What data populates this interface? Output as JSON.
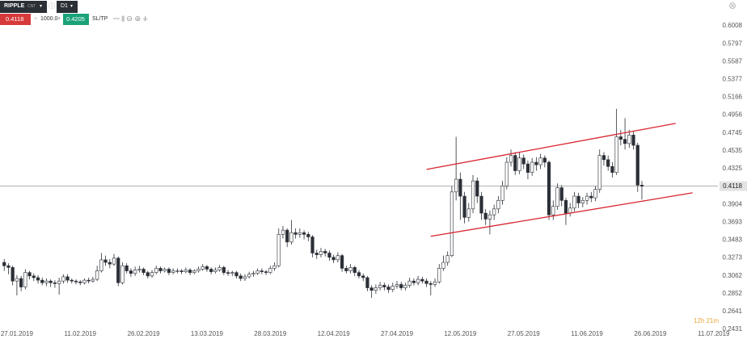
{
  "toolbar": {
    "symbol": "RIPPLE",
    "mode": "CNT",
    "timeframe": "D1",
    "sell": "0.4118",
    "volume": "1000.0",
    "buy": "0.4205",
    "sltp": "SL/TP"
  },
  "chart_data": {
    "type": "candlestick",
    "x": [
      "24.01.2019",
      "25.01.2019",
      "26.01.2019",
      "27.01.2019",
      "28.01.2019",
      "29.01.2019",
      "30.01.2019",
      "31.01.2019",
      "01.02.2019",
      "02.02.2019",
      "03.02.2019",
      "04.02.2019",
      "05.02.2019",
      "06.02.2019",
      "07.02.2019",
      "08.02.2019",
      "09.02.2019",
      "10.02.2019",
      "11.02.2019",
      "12.02.2019",
      "13.02.2019",
      "14.02.2019",
      "15.02.2019",
      "16.02.2019",
      "17.02.2019",
      "18.02.2019",
      "19.02.2019",
      "20.02.2019",
      "21.02.2019",
      "22.02.2019",
      "23.02.2019",
      "24.02.2019",
      "25.02.2019",
      "26.02.2019",
      "27.02.2019",
      "28.02.2019",
      "01.03.2019",
      "02.03.2019",
      "03.03.2019",
      "04.03.2019",
      "05.03.2019",
      "06.03.2019",
      "07.03.2019",
      "08.03.2019",
      "09.03.2019",
      "10.03.2019",
      "11.03.2019",
      "12.03.2019",
      "13.03.2019",
      "14.03.2019",
      "15.03.2019",
      "16.03.2019",
      "17.03.2019",
      "18.03.2019",
      "19.03.2019",
      "20.03.2019",
      "21.03.2019",
      "22.03.2019",
      "23.03.2019",
      "24.03.2019",
      "25.03.2019",
      "26.03.2019",
      "27.03.2019",
      "28.03.2019",
      "29.03.2019",
      "30.03.2019",
      "31.03.2019",
      "01.04.2019",
      "02.04.2019",
      "03.04.2019",
      "04.04.2019",
      "05.04.2019",
      "06.04.2019",
      "07.04.2019",
      "08.04.2019",
      "09.04.2019",
      "10.04.2019",
      "11.04.2019",
      "12.04.2019",
      "13.04.2019",
      "14.04.2019",
      "15.04.2019",
      "16.04.2019",
      "17.04.2019",
      "18.04.2019",
      "19.04.2019",
      "20.04.2019",
      "21.04.2019",
      "22.04.2019",
      "23.04.2019",
      "24.04.2019",
      "25.04.2019",
      "26.04.2019",
      "27.04.2019",
      "28.04.2019",
      "29.04.2019",
      "30.04.2019",
      "01.05.2019",
      "02.05.2019",
      "03.05.2019",
      "04.05.2019",
      "05.05.2019",
      "06.05.2019",
      "07.05.2019",
      "08.05.2019",
      "09.05.2019",
      "10.05.2019",
      "11.05.2019",
      "12.05.2019",
      "13.05.2019",
      "14.05.2019",
      "15.05.2019",
      "16.05.2019",
      "17.05.2019",
      "18.05.2019",
      "19.05.2019",
      "20.05.2019",
      "21.05.2019",
      "22.05.2019",
      "23.05.2019",
      "24.05.2019",
      "25.05.2019",
      "26.05.2019",
      "27.05.2019",
      "28.05.2019",
      "29.05.2019",
      "30.05.2019",
      "31.05.2019",
      "01.06.2019",
      "02.06.2019",
      "03.06.2019",
      "04.06.2019",
      "05.06.2019",
      "06.06.2019",
      "07.06.2019",
      "08.06.2019",
      "09.06.2019",
      "10.06.2019",
      "11.06.2019",
      "12.06.2019",
      "13.06.2019",
      "14.06.2019",
      "15.06.2019",
      "16.06.2019",
      "17.06.2019",
      "18.06.2019",
      "19.06.2019",
      "20.06.2019",
      "21.06.2019",
      "22.06.2019",
      "23.06.2019",
      "24.06.2019"
    ],
    "open": [
      0.322,
      0.318,
      0.316,
      0.3,
      0.303,
      0.293,
      0.31,
      0.306,
      0.304,
      0.301,
      0.298,
      0.3,
      0.298,
      0.297,
      0.3,
      0.305,
      0.301,
      0.3,
      0.299,
      0.298,
      0.301,
      0.3,
      0.302,
      0.312,
      0.325,
      0.322,
      0.32,
      0.327,
      0.298,
      0.318,
      0.312,
      0.309,
      0.313,
      0.314,
      0.31,
      0.306,
      0.31,
      0.315,
      0.312,
      0.314,
      0.31,
      0.312,
      0.312,
      0.311,
      0.313,
      0.31,
      0.312,
      0.314,
      0.317,
      0.314,
      0.311,
      0.313,
      0.316,
      0.31,
      0.309,
      0.31,
      0.306,
      0.303,
      0.305,
      0.308,
      0.309,
      0.312,
      0.311,
      0.31,
      0.315,
      0.318,
      0.355,
      0.36,
      0.346,
      0.357,
      0.355,
      0.357,
      0.355,
      0.352,
      0.333,
      0.331,
      0.335,
      0.333,
      0.328,
      0.325,
      0.33,
      0.315,
      0.312,
      0.316,
      0.31,
      0.306,
      0.304,
      0.292,
      0.289,
      0.292,
      0.295,
      0.293,
      0.29,
      0.294,
      0.296,
      0.292,
      0.295,
      0.3,
      0.298,
      0.302,
      0.3,
      0.297,
      0.296,
      0.299,
      0.315,
      0.322,
      0.33,
      0.405,
      0.42,
      0.4,
      0.375,
      0.385,
      0.418,
      0.4,
      0.38,
      0.373,
      0.378,
      0.385,
      0.395,
      0.412,
      0.44,
      0.448,
      0.43,
      0.445,
      0.438,
      0.428,
      0.44,
      0.437,
      0.445,
      0.44,
      0.378,
      0.388,
      0.41,
      0.395,
      0.38,
      0.386,
      0.4,
      0.392,
      0.395,
      0.4,
      0.398,
      0.408,
      0.448,
      0.443,
      0.435,
      0.428,
      0.47,
      0.467,
      0.462,
      0.472,
      0.46,
      0.413
    ],
    "high": [
      0.326,
      0.321,
      0.318,
      0.307,
      0.306,
      0.314,
      0.312,
      0.309,
      0.307,
      0.304,
      0.303,
      0.302,
      0.301,
      0.304,
      0.308,
      0.308,
      0.303,
      0.302,
      0.301,
      0.303,
      0.304,
      0.305,
      0.318,
      0.333,
      0.33,
      0.326,
      0.332,
      0.329,
      0.322,
      0.321,
      0.315,
      0.317,
      0.318,
      0.316,
      0.312,
      0.313,
      0.318,
      0.317,
      0.316,
      0.316,
      0.315,
      0.315,
      0.314,
      0.316,
      0.315,
      0.314,
      0.317,
      0.32,
      0.319,
      0.316,
      0.316,
      0.319,
      0.318,
      0.313,
      0.312,
      0.312,
      0.309,
      0.308,
      0.311,
      0.312,
      0.315,
      0.315,
      0.313,
      0.318,
      0.322,
      0.362,
      0.365,
      0.362,
      0.372,
      0.362,
      0.362,
      0.36,
      0.358,
      0.354,
      0.337,
      0.339,
      0.338,
      0.336,
      0.331,
      0.334,
      0.332,
      0.318,
      0.32,
      0.318,
      0.313,
      0.309,
      0.306,
      0.295,
      0.296,
      0.299,
      0.298,
      0.296,
      0.298,
      0.3,
      0.299,
      0.298,
      0.304,
      0.303,
      0.306,
      0.305,
      0.303,
      0.3,
      0.303,
      0.32,
      0.33,
      0.335,
      0.412,
      0.47,
      0.428,
      0.405,
      0.392,
      0.425,
      0.422,
      0.405,
      0.385,
      0.383,
      0.39,
      0.4,
      0.418,
      0.446,
      0.455,
      0.452,
      0.452,
      0.449,
      0.442,
      0.445,
      0.446,
      0.45,
      0.448,
      0.442,
      0.395,
      0.415,
      0.413,
      0.398,
      0.392,
      0.405,
      0.404,
      0.399,
      0.404,
      0.405,
      0.412,
      0.455,
      0.452,
      0.448,
      0.44,
      0.503,
      0.478,
      0.492,
      0.478,
      0.476,
      0.463,
      0.418
    ],
    "low": [
      0.312,
      0.308,
      0.295,
      0.283,
      0.288,
      0.29,
      0.302,
      0.3,
      0.297,
      0.295,
      0.294,
      0.293,
      0.292,
      0.284,
      0.297,
      0.298,
      0.297,
      0.296,
      0.295,
      0.296,
      0.297,
      0.298,
      0.3,
      0.31,
      0.318,
      0.315,
      0.318,
      0.294,
      0.296,
      0.309,
      0.305,
      0.306,
      0.31,
      0.307,
      0.303,
      0.304,
      0.308,
      0.309,
      0.31,
      0.307,
      0.308,
      0.309,
      0.308,
      0.309,
      0.307,
      0.308,
      0.31,
      0.312,
      0.311,
      0.308,
      0.309,
      0.311,
      0.307,
      0.306,
      0.306,
      0.303,
      0.3,
      0.3,
      0.303,
      0.305,
      0.307,
      0.308,
      0.307,
      0.308,
      0.312,
      0.316,
      0.35,
      0.34,
      0.343,
      0.35,
      0.351,
      0.349,
      0.347,
      0.328,
      0.326,
      0.328,
      0.329,
      0.324,
      0.321,
      0.322,
      0.311,
      0.309,
      0.309,
      0.306,
      0.303,
      0.3,
      0.288,
      0.28,
      0.285,
      0.289,
      0.289,
      0.286,
      0.287,
      0.291,
      0.289,
      0.289,
      0.292,
      0.295,
      0.295,
      0.297,
      0.293,
      0.283,
      0.293,
      0.297,
      0.312,
      0.318,
      0.328,
      0.395,
      0.372,
      0.368,
      0.37,
      0.38,
      0.392,
      0.372,
      0.366,
      0.355,
      0.372,
      0.38,
      0.39,
      0.408,
      0.435,
      0.425,
      0.426,
      0.432,
      0.42,
      0.424,
      0.43,
      0.432,
      0.434,
      0.372,
      0.372,
      0.384,
      0.388,
      0.366,
      0.376,
      0.382,
      0.386,
      0.387,
      0.39,
      0.393,
      0.394,
      0.404,
      0.436,
      0.43,
      0.422,
      0.425,
      0.46,
      0.455,
      0.457,
      0.455,
      0.405,
      0.396
    ],
    "close": [
      0.318,
      0.316,
      0.3,
      0.303,
      0.293,
      0.31,
      0.306,
      0.304,
      0.301,
      0.298,
      0.3,
      0.298,
      0.297,
      0.3,
      0.305,
      0.301,
      0.3,
      0.299,
      0.298,
      0.301,
      0.3,
      0.302,
      0.312,
      0.325,
      0.322,
      0.32,
      0.327,
      0.298,
      0.318,
      0.312,
      0.309,
      0.313,
      0.314,
      0.31,
      0.306,
      0.31,
      0.315,
      0.312,
      0.314,
      0.31,
      0.312,
      0.312,
      0.311,
      0.313,
      0.31,
      0.312,
      0.314,
      0.317,
      0.314,
      0.311,
      0.313,
      0.316,
      0.31,
      0.309,
      0.31,
      0.306,
      0.303,
      0.305,
      0.308,
      0.309,
      0.312,
      0.311,
      0.31,
      0.315,
      0.318,
      0.355,
      0.36,
      0.346,
      0.357,
      0.355,
      0.357,
      0.355,
      0.352,
      0.333,
      0.331,
      0.335,
      0.333,
      0.328,
      0.325,
      0.33,
      0.315,
      0.312,
      0.316,
      0.31,
      0.306,
      0.304,
      0.292,
      0.289,
      0.292,
      0.295,
      0.293,
      0.29,
      0.294,
      0.296,
      0.292,
      0.295,
      0.3,
      0.298,
      0.302,
      0.3,
      0.297,
      0.296,
      0.299,
      0.315,
      0.322,
      0.33,
      0.405,
      0.42,
      0.4,
      0.375,
      0.385,
      0.418,
      0.4,
      0.38,
      0.373,
      0.378,
      0.385,
      0.395,
      0.412,
      0.44,
      0.448,
      0.43,
      0.445,
      0.438,
      0.428,
      0.44,
      0.437,
      0.445,
      0.44,
      0.378,
      0.388,
      0.41,
      0.395,
      0.38,
      0.386,
      0.4,
      0.392,
      0.395,
      0.4,
      0.398,
      0.408,
      0.448,
      0.443,
      0.435,
      0.428,
      0.47,
      0.467,
      0.462,
      0.472,
      0.46,
      0.413,
      0.4118
    ],
    "up_color": "#ffffff",
    "down_color": "#2b2f36",
    "outline_color": "#2b2f36",
    "xlim": [
      "23.01.2019",
      "12.07.2019"
    ],
    "xticks": [
      "27.01.2019",
      "11.02.2019",
      "26.02.2019",
      "13.03.2019",
      "28.03.2019",
      "12.04.2019",
      "27.04.2019",
      "12.05.2019",
      "27.05.2019",
      "11.06.2019",
      "26.06.2019",
      "11.07.2019"
    ],
    "ylim": [
      0.2431,
      0.6312
    ],
    "yticks": [
      0.6008,
      0.5797,
      0.5587,
      0.5377,
      0.5166,
      0.4956,
      0.4745,
      0.4535,
      0.4325,
      0.3904,
      0.3693,
      0.3483,
      0.3273,
      0.3062,
      0.2852,
      0.2641,
      0.2431
    ],
    "grid": false,
    "price_line": 0.4118,
    "trendlines": [
      {
        "x": [
          "04.05.2019",
          "02.07.2019"
        ],
        "y": [
          0.4316,
          0.4858
        ],
        "color": "#d9232e"
      },
      {
        "x": [
          "05.05.2019",
          "06.07.2019"
        ],
        "y": [
          0.3527,
          0.404
        ],
        "color": "#d9232e"
      }
    ],
    "countdown": "12h 21m"
  }
}
